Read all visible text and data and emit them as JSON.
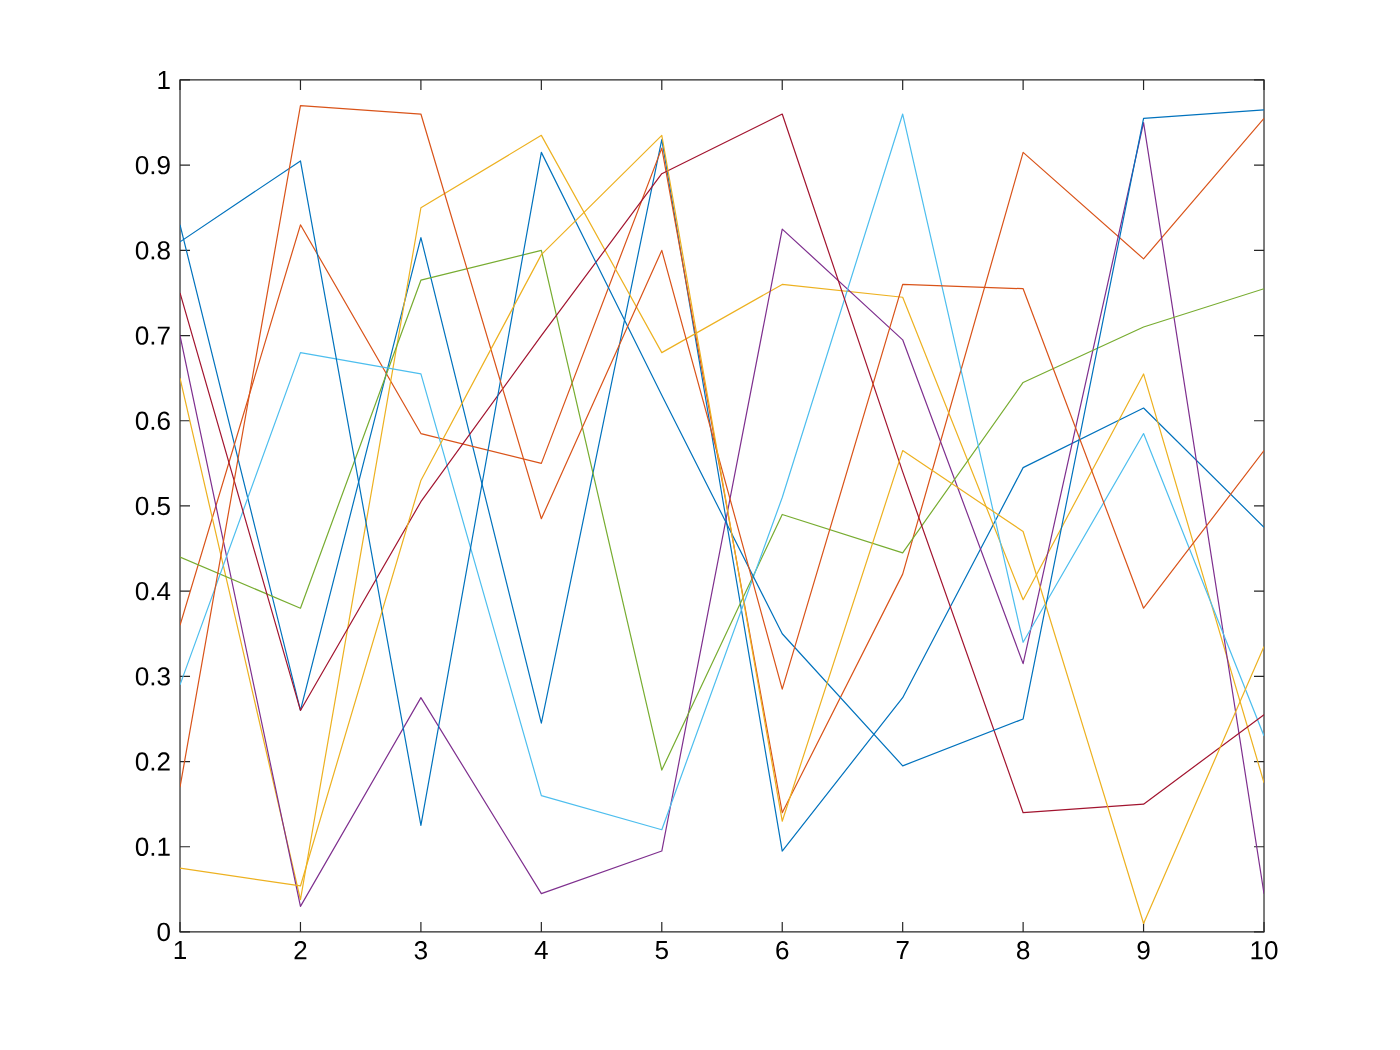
{
  "chart_data": {
    "type": "line",
    "x": [
      1,
      2,
      3,
      4,
      5,
      6,
      7,
      8,
      9,
      10
    ],
    "xlim": [
      1,
      10
    ],
    "ylim": [
      0,
      1
    ],
    "xticks": [
      1,
      2,
      3,
      4,
      5,
      6,
      7,
      8,
      9,
      10
    ],
    "yticks": [
      0,
      0.1,
      0.2,
      0.3,
      0.4,
      0.5,
      0.6,
      0.7,
      0.8,
      0.9,
      1
    ],
    "grid": false,
    "marker": "none",
    "line_style": "solid",
    "series": [
      {
        "color": "#0072bd",
        "values": [
          0.83,
          0.26,
          0.815,
          0.245,
          0.93,
          0.095,
          0.275,
          0.545,
          0.615,
          0.475
        ]
      },
      {
        "color": "#d95319",
        "values": [
          0.36,
          0.83,
          0.585,
          0.55,
          0.92,
          0.14,
          0.42,
          0.915,
          0.79,
          0.955
        ]
      },
      {
        "color": "#edb120",
        "values": [
          0.65,
          0.038,
          0.85,
          0.935,
          0.68,
          0.76,
          0.745,
          0.39,
          0.655,
          0.175
        ]
      },
      {
        "color": "#7e2f8e",
        "values": [
          0.7,
          0.03,
          0.275,
          0.045,
          0.095,
          0.825,
          0.695,
          0.315,
          0.95,
          0.045
        ]
      },
      {
        "color": "#77ac30",
        "values": [
          0.44,
          0.38,
          0.765,
          0.8,
          0.19,
          0.49,
          0.445,
          0.645,
          0.71,
          0.755
        ]
      },
      {
        "color": "#4dbeee",
        "values": [
          0.29,
          0.68,
          0.655,
          0.16,
          0.12,
          0.51,
          0.96,
          0.34,
          0.585,
          0.23
        ]
      },
      {
        "color": "#a2142f",
        "values": [
          0.75,
          0.26,
          0.505,
          0.7,
          0.89,
          0.96,
          0.54,
          0.14,
          0.15,
          0.255
        ]
      },
      {
        "color": "#0072bd",
        "values": [
          0.81,
          0.905,
          0.125,
          0.915,
          0.63,
          0.35,
          0.195,
          0.25,
          0.955,
          0.965
        ]
      },
      {
        "color": "#d95319",
        "values": [
          0.17,
          0.97,
          0.96,
          0.485,
          0.8,
          0.285,
          0.76,
          0.755,
          0.38,
          0.565
        ]
      },
      {
        "color": "#edb120",
        "values": [
          0.075,
          0.054,
          0.53,
          0.795,
          0.935,
          0.13,
          0.565,
          0.47,
          0.01,
          0.335
        ]
      }
    ]
  }
}
